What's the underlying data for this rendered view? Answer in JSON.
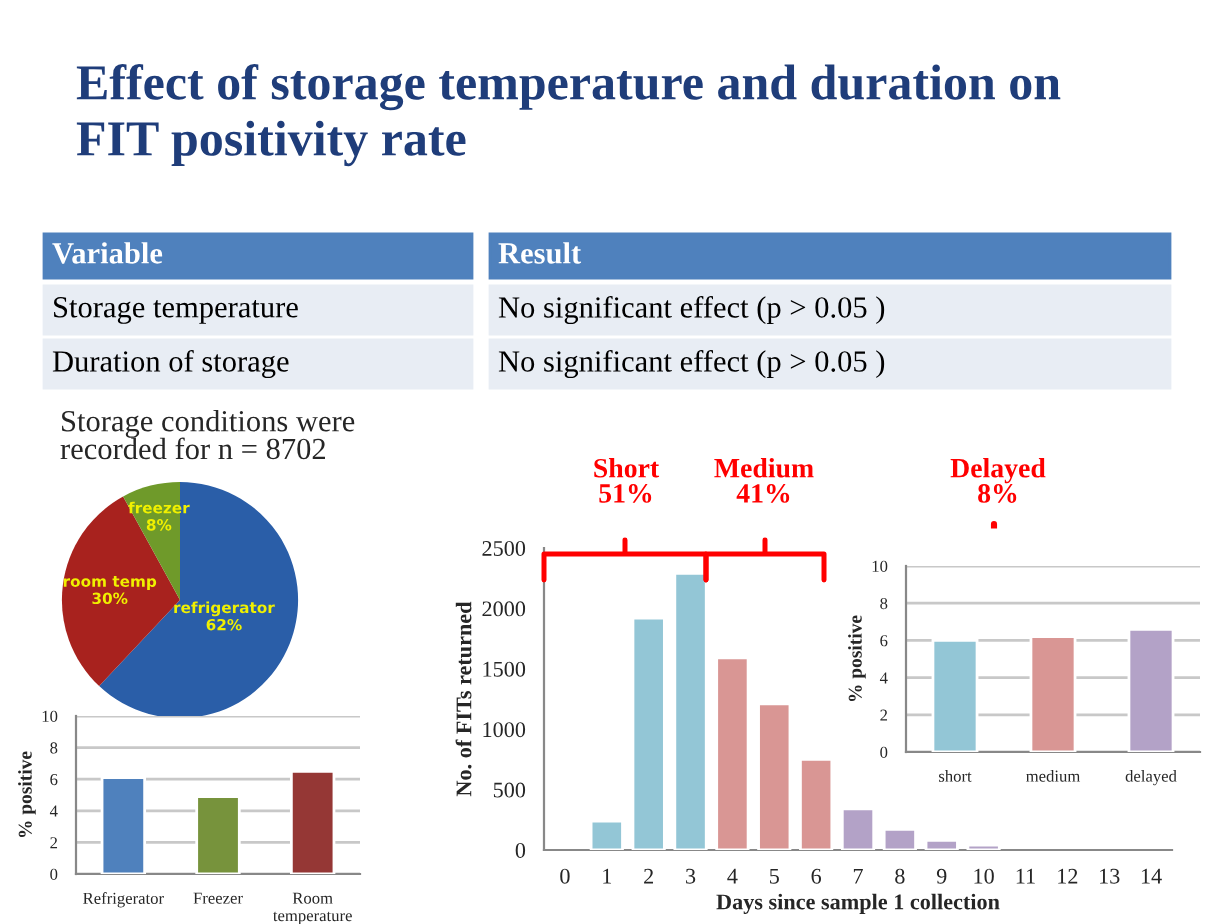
{
  "chart_data": [
    {
      "type": "other",
      "title": "Effect of storage temperature and duration on FIT positivity rate",
      "annotations": [
        "Variable",
        "Result",
        "Storage temperature",
        "No significant effect (p > 0.05 )",
        "Duration of storage",
        "No significant effect (p > 0.05 )"
      ]
    },
    {
      "type": "pie",
      "title": "Storage conditions were recorded for n = 8702",
      "categories": [
        "refrigerator",
        "room temp",
        "freezer"
      ],
      "values": [
        62,
        30,
        8
      ],
      "colors": [
        "#2a5ea8",
        "#a8221e",
        "#6f9a2a"
      ],
      "value_labels": [
        "62%",
        "30%",
        "8%"
      ]
    },
    {
      "type": "bar",
      "categories": [
        "Refrigerator",
        "Freezer",
        "Room temperature"
      ],
      "values": [
        6.1,
        4.9,
        6.5
      ],
      "colors": [
        "#4f81bd",
        "#77933c",
        "#953735"
      ],
      "ylabel": "% positive",
      "ylim": [
        0,
        10
      ],
      "yticks": [
        0,
        2,
        4,
        6,
        8,
        10
      ],
      "grid": "y"
    },
    {
      "type": "bar",
      "categories": [
        "0",
        "1",
        "2",
        "3",
        "4",
        "5",
        "6",
        "7",
        "8",
        "9",
        "10",
        "11",
        "12",
        "13",
        "14"
      ],
      "values": [
        null,
        240,
        1920,
        2290,
        1590,
        1210,
        750,
        340,
        170,
        80,
        40,
        null,
        null,
        null,
        null
      ],
      "colors": [
        "#93c6d6",
        "#93c6d6",
        "#93c6d6",
        "#93c6d6",
        "#d99694",
        "#d99694",
        "#d99694",
        "#b3a2c7",
        "#b3a2c7",
        "#b3a2c7",
        "#b3a2c7",
        "#b3a2c7",
        "#b3a2c7",
        "#b3a2c7",
        "#b3a2c7"
      ],
      "xlabel": "Days since sample 1 collection",
      "ylabel": "No. of FITs returned",
      "ylim": [
        0,
        2500
      ],
      "yticks": [
        0,
        500,
        1000,
        1500,
        2000,
        2500
      ],
      "annotations": [
        "Short\n51%",
        "Medium\n41%",
        "Delayed\n8%"
      ]
    },
    {
      "type": "bar",
      "categories": [
        "short",
        "medium",
        "delayed"
      ],
      "values": [
        6.0,
        6.2,
        6.6
      ],
      "colors": [
        "#93c6d6",
        "#d99694",
        "#b3a2c7"
      ],
      "ylabel": "% positive",
      "ylim": [
        0,
        10
      ],
      "yticks": [
        0,
        2,
        4,
        6,
        8,
        10
      ],
      "grid": "y"
    }
  ]
}
